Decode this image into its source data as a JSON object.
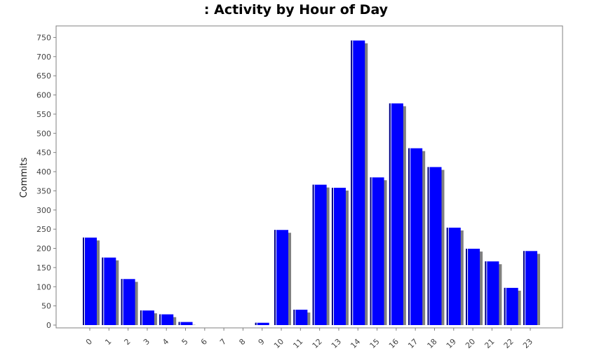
{
  "chart_data": {
    "type": "bar",
    "title": ": Activity by Hour of Day",
    "xlabel": "",
    "ylabel": "Commits",
    "ylim": [
      0,
      780
    ],
    "yticks": [
      0,
      50,
      100,
      150,
      200,
      250,
      300,
      350,
      400,
      450,
      500,
      550,
      600,
      650,
      700,
      750
    ],
    "categories": [
      "0",
      "1",
      "2",
      "3",
      "4",
      "5",
      "6",
      "7",
      "8",
      "9",
      "10",
      "11",
      "12",
      "13",
      "14",
      "15",
      "16",
      "17",
      "18",
      "19",
      "20",
      "21",
      "22",
      "23"
    ],
    "series": [
      {
        "values": [
          228,
          176,
          120,
          38,
          28,
          8,
          0,
          0,
          0,
          6,
          248,
          40,
          366,
          358,
          742,
          385,
          578,
          461,
          412,
          254,
          199,
          166,
          97,
          193
        ]
      }
    ],
    "grid": false,
    "colors": {
      "bar": "#0000ff",
      "bar_edge": "#000080",
      "shadow": "#808080",
      "axis": "#808080"
    }
  }
}
